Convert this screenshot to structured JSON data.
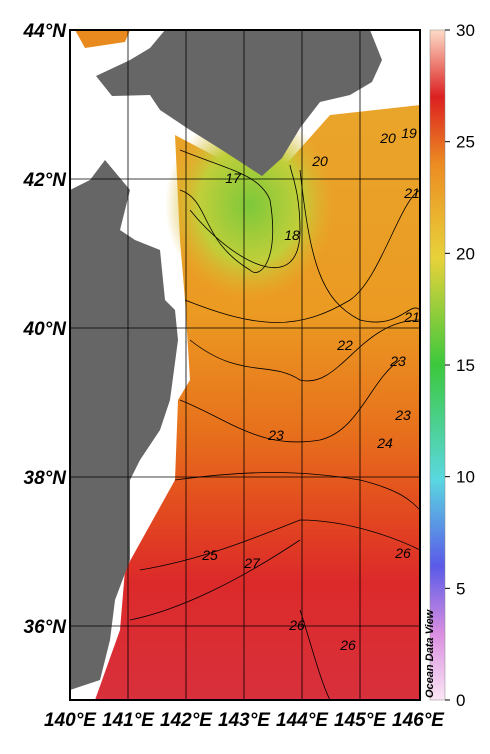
{
  "map": {
    "lat_labels": [
      "44°N",
      "42°N",
      "40°N",
      "38°N",
      "36°N"
    ],
    "lon_labels": [
      "140°E",
      "141°E",
      "142°E",
      "143°E",
      "144°E",
      "145°E",
      "146°E"
    ]
  },
  "colorbar": {
    "ticks": [
      "0",
      "5",
      "10",
      "15",
      "20",
      "25",
      "30"
    ],
    "credit": "Ocean Data View"
  },
  "contour_labels": [
    "17",
    "18",
    "20",
    "20",
    "19",
    "21",
    "22",
    "21",
    "23",
    "23",
    "23",
    "24",
    "25",
    "27",
    "26",
    "26",
    "26"
  ]
}
